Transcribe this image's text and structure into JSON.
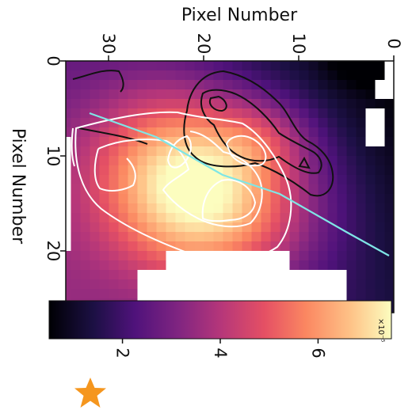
{
  "chart_data": {
    "type": "heatmap",
    "colormap": "magma",
    "orientation": "rotated 90 degrees (reading text rotates clockwise)",
    "xlabel": "Pixel Number",
    "ylabel": "Pixel Number",
    "x_axis": {
      "position": "top",
      "reversed": true,
      "range": [
        0,
        35
      ],
      "ticks": [
        {
          "value": 0,
          "label": "0"
        },
        {
          "value": 10,
          "label": "10"
        },
        {
          "value": 20,
          "label": "20"
        },
        {
          "value": 30,
          "label": "30"
        }
      ]
    },
    "y_axis": {
      "position": "left",
      "range": [
        0,
        25
      ],
      "ticks": [
        {
          "value": 0,
          "label": "0"
        },
        {
          "value": 10,
          "label": "10"
        },
        {
          "value": 20,
          "label": "20"
        }
      ]
    },
    "colorbar": {
      "position": "bottom",
      "range": [
        0.5,
        7.5
      ],
      "multiplier": "×10⁻⁵",
      "ticks": [
        {
          "value": 2,
          "label": "2"
        },
        {
          "value": 4,
          "label": "4"
        },
        {
          "value": 6,
          "label": "6"
        }
      ]
    },
    "intensity_peak": {
      "x": 19,
      "y": 15,
      "value": 7.3
    },
    "masked_color": "#ffffff",
    "contours": {
      "black": {
        "color": "#111111",
        "levels": 3
      },
      "white": {
        "color": "#ffffff",
        "levels": 4
      }
    },
    "cut_line": {
      "color": "#7fe6e6",
      "points": [
        [
          32,
          5.5
        ],
        [
          25,
          8
        ],
        [
          18,
          12
        ],
        [
          12,
          14
        ],
        [
          5,
          18
        ],
        [
          0.5,
          20.5
        ]
      ]
    },
    "marker": {
      "shape": "star",
      "color": "#f5961e",
      "icon": "star-icon"
    }
  }
}
